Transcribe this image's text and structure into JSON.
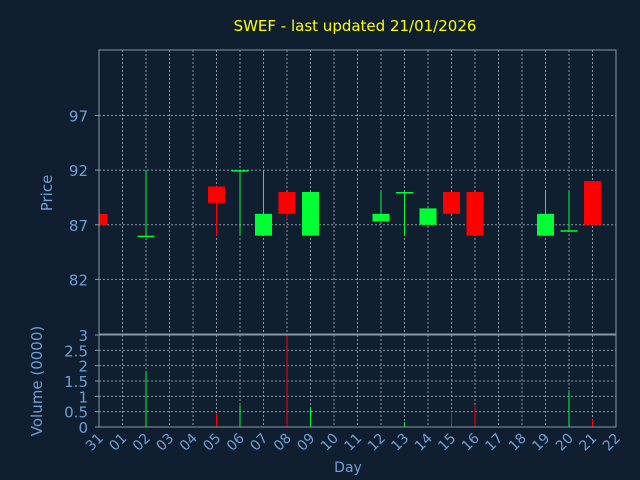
{
  "chart_data": {
    "type": "candlestick",
    "title": "SWEF - last updated 21/01/2026",
    "xlabel": "Day",
    "ylabel": "Price",
    "volume_label": "Volume (0000)",
    "grid": true,
    "price_ylim": [
      77,
      103
    ],
    "price_ticks": [
      "82",
      "87",
      "92",
      "97"
    ],
    "price_tick_values": [
      82,
      87,
      92,
      97
    ],
    "volume_ylim": [
      0,
      3
    ],
    "volume_ticks": [
      "0",
      "0.5",
      "1",
      "1.5",
      "2",
      "2.5",
      "3"
    ],
    "volume_tick_values": [
      0,
      0.5,
      1,
      1.5,
      2,
      2.5,
      3
    ],
    "x_tick_labels": [
      "31",
      "01",
      "02",
      "03",
      "04",
      "05",
      "06",
      "07",
      "08",
      "09",
      "10",
      "11",
      "12",
      "13",
      "14",
      "15",
      "16",
      "17",
      "18",
      "19",
      "20",
      "21",
      "22"
    ],
    "candles": [
      {
        "day": "31",
        "open": 88.0,
        "high": 88.0,
        "low": 87.0,
        "close": 87.0,
        "volume": 0
      },
      {
        "day": "02",
        "open": 86.0,
        "high": 92.0,
        "low": 86.0,
        "close": 86.0,
        "volume": 1.8
      },
      {
        "day": "05",
        "open": 90.5,
        "high": 90.5,
        "low": 86.0,
        "close": 89.0,
        "volume": 0.45
      },
      {
        "day": "06",
        "open": 92.0,
        "high": 92.0,
        "low": 86.0,
        "close": 92.0,
        "volume": 0.7
      },
      {
        "day": "07",
        "open": 86.0,
        "high": 92.0,
        "low": 86.0,
        "close": 88.0,
        "volume": 0
      },
      {
        "day": "08",
        "open": 90.0,
        "high": 90.0,
        "low": 87.5,
        "close": 88.0,
        "volume": 3.0
      },
      {
        "day": "09",
        "open": 86.0,
        "high": 90.0,
        "low": 86.0,
        "close": 90.0,
        "volume": 0.65
      },
      {
        "day": "12",
        "open": 87.3,
        "high": 90.0,
        "low": 87.3,
        "close": 88.0,
        "volume": 0
      },
      {
        "day": "13",
        "open": 90.0,
        "high": 90.0,
        "low": 86.0,
        "close": 90.0,
        "volume": 0.15
      },
      {
        "day": "14",
        "open": 87.0,
        "high": 88.5,
        "low": 87.0,
        "close": 88.5,
        "volume": 0
      },
      {
        "day": "15",
        "open": 90.0,
        "high": 90.0,
        "low": 88.0,
        "close": 88.0,
        "volume": 0.5
      },
      {
        "day": "16",
        "open": 90.0,
        "high": 90.0,
        "low": 86.0,
        "close": 86.0,
        "volume": 0.7
      },
      {
        "day": "19",
        "open": 86.0,
        "high": 90.0,
        "low": 86.0,
        "close": 88.0,
        "volume": 0
      },
      {
        "day": "20",
        "open": 86.5,
        "high": 90.0,
        "low": 86.5,
        "close": 86.5,
        "volume": 1.2
      },
      {
        "day": "21",
        "open": 91.0,
        "high": 91.0,
        "low": 87.0,
        "close": 87.0,
        "volume": 0.25
      }
    ]
  },
  "colors": {
    "background": "#0f1f30",
    "grid": "#8a96a8",
    "title": "#ffff00",
    "axis_text": "#6f9fd8",
    "up": "#00ff33",
    "down": "#ff0000"
  }
}
